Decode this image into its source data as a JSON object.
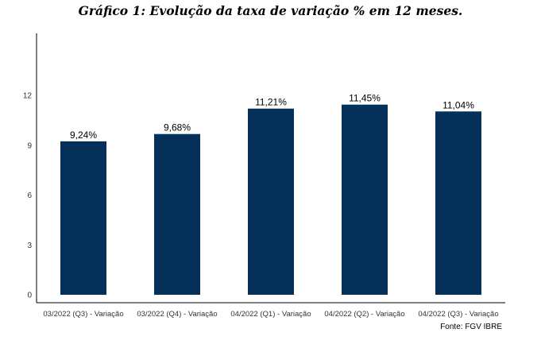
{
  "chart_data": {
    "type": "bar",
    "title": "Gráfico 1: Evolução da taxa de variação % em 12 meses.",
    "categories": [
      "03/2022 (Q3) - Variação",
      "03/2022 (Q4) - Variação",
      "04/2022 (Q1) - Variação",
      "04/2022 (Q2) - Variação",
      "04/2022 (Q3) - Variação"
    ],
    "values": [
      9.24,
      9.68,
      11.21,
      11.45,
      11.04
    ],
    "data_labels": [
      "9,24%",
      "9,68%",
      "11,21%",
      "11,45%",
      "11,04%"
    ],
    "y_ticks": [
      0,
      3,
      6,
      9,
      12
    ],
    "ylim": [
      0,
      15.8
    ],
    "xlabel": "",
    "ylabel": "",
    "grid": false,
    "bar_color": "#04305A",
    "source": "Fonte: FGV IBRE"
  }
}
